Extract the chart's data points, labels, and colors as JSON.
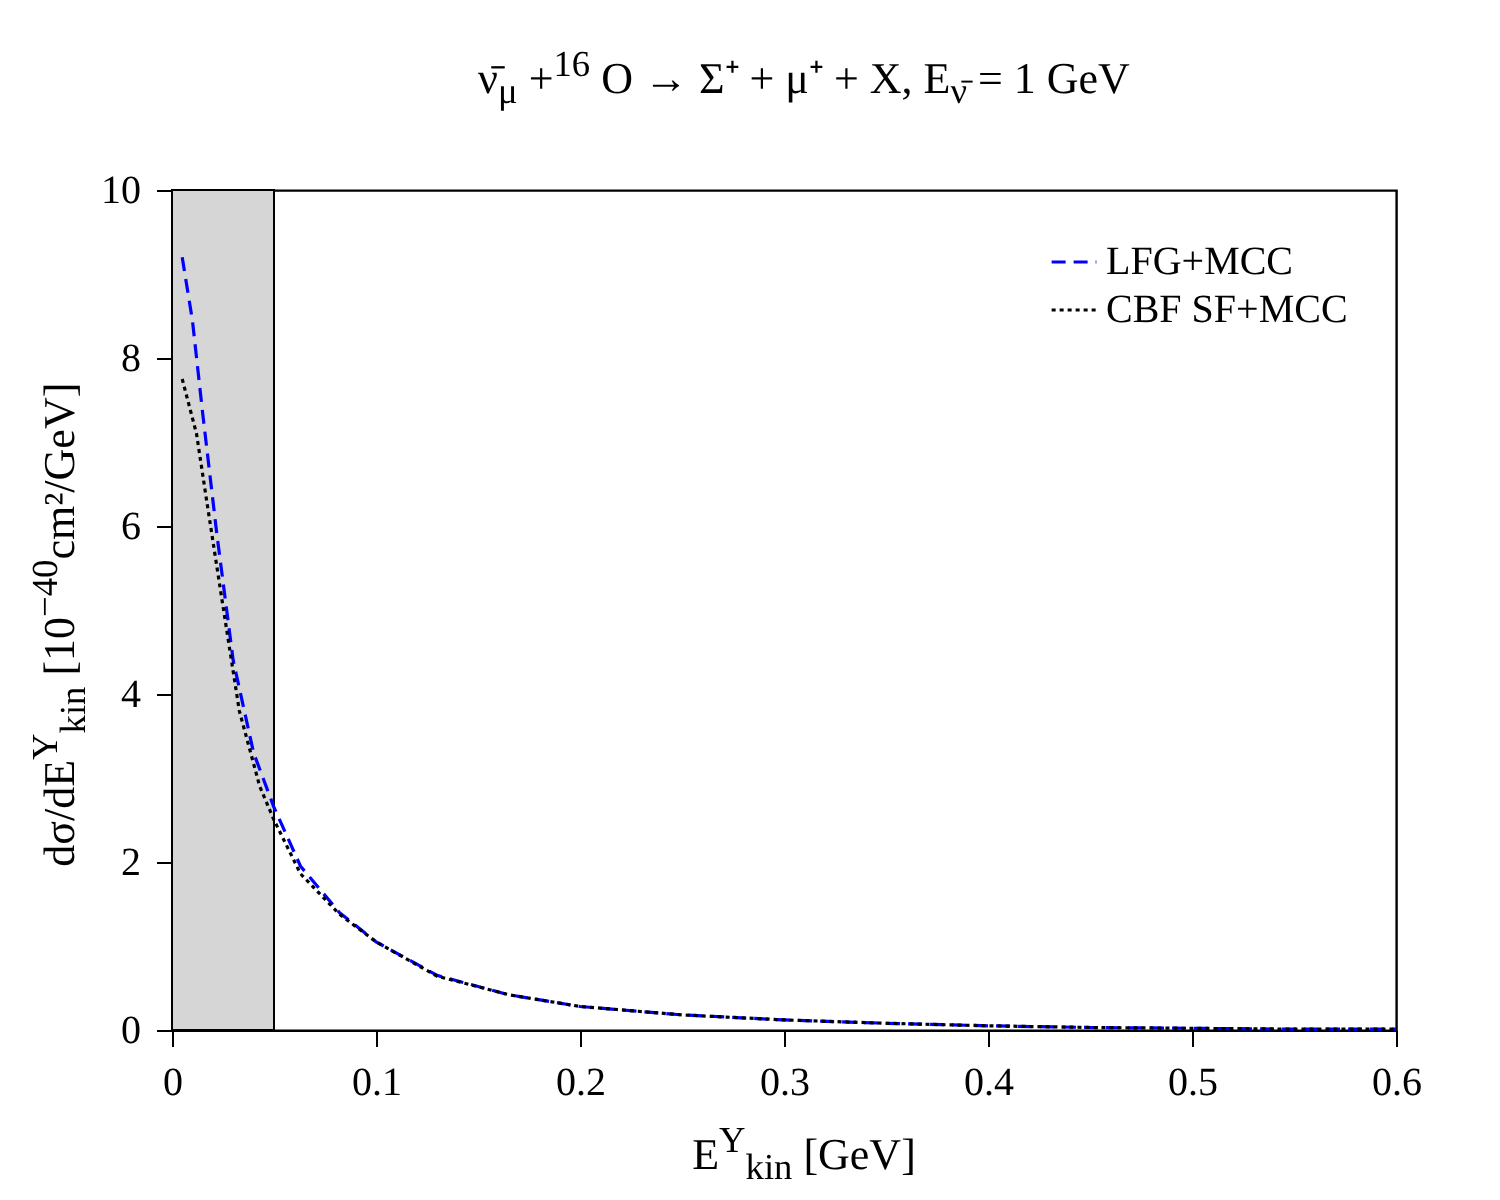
{
  "chart_data": {
    "type": "line",
    "title": "ν̄$_{μ}$ +$^{16}$ O → Σ⁺ + μ⁺ + X,    E$_{ν̄}$ = 1 GeV",
    "xlabel": "E$^{Y}$$_{kin}$ [GeV]",
    "ylabel": "dσ/dE$^{Y}$$_{kin}$ [10$^{−40}$cm²/GeV]",
    "xlim": [
      0,
      0.6
    ],
    "xticks": [
      0,
      0.1,
      0.2,
      0.3,
      0.4,
      0.5,
      0.6
    ],
    "ylim": [
      0,
      10
    ],
    "yticks": [
      0,
      2,
      4,
      6,
      8,
      10
    ],
    "grid": false,
    "legend": "top right",
    "bands": [
      {
        "axis": "x",
        "from": 0,
        "to": 0.05,
        "color": "#d6d6d6"
      }
    ],
    "series": [
      {
        "name": "LFG+MCC",
        "color": "#0000ff",
        "line_style": "dashed",
        "x": [
          0.005,
          0.01,
          0.015,
          0.022,
          0.03,
          0.04,
          0.05,
          0.063,
          0.082,
          0.1,
          0.13,
          0.165,
          0.2,
          0.25,
          0.3,
          0.35,
          0.4,
          0.45,
          0.5,
          0.55,
          0.6
        ],
        "values": [
          9.2,
          8.45,
          7.35,
          5.9,
          4.4,
          3.3,
          2.65,
          1.95,
          1.4,
          1.05,
          0.65,
          0.42,
          0.28,
          0.18,
          0.12,
          0.08,
          0.05,
          0.03,
          0.02,
          0.01,
          0.01
        ]
      },
      {
        "name": "CBF SF+MCC",
        "color": "#000000",
        "line_style": "dotted",
        "x": [
          0.005,
          0.012,
          0.017,
          0.024,
          0.033,
          0.043,
          0.05,
          0.063,
          0.082,
          0.1,
          0.13,
          0.165,
          0.2,
          0.25,
          0.3,
          0.35,
          0.4,
          0.45,
          0.5,
          0.55,
          0.6
        ],
        "values": [
          7.75,
          7.1,
          6.3,
          5.2,
          3.8,
          2.9,
          2.5,
          1.86,
          1.38,
          1.05,
          0.64,
          0.42,
          0.28,
          0.18,
          0.12,
          0.08,
          0.05,
          0.03,
          0.02,
          0.01,
          0.01
        ]
      }
    ]
  }
}
